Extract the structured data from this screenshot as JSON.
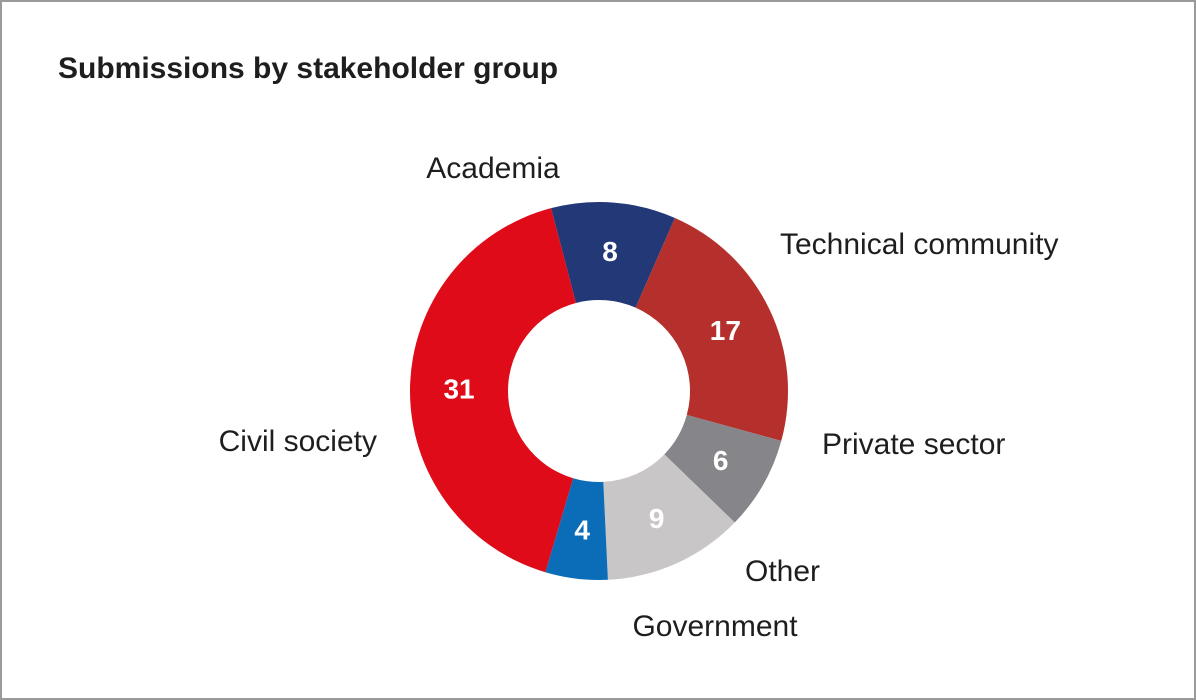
{
  "chart_data": {
    "type": "pie",
    "title": "Submissions by stakeholder group",
    "categories": [
      "Academia",
      "Technical community",
      "Private sector",
      "Other",
      "Government",
      "Civil society"
    ],
    "values": [
      8,
      17,
      6,
      9,
      4,
      31
    ],
    "colors": [
      "#233876",
      "#b5302d",
      "#86868a",
      "#c9c6c7",
      "#0b6cb8",
      "#df0b19"
    ],
    "data_labels": [
      "8",
      "17",
      "6",
      "9",
      "4",
      "31"
    ],
    "donut": true,
    "start_angle_deg": -14.7
  }
}
